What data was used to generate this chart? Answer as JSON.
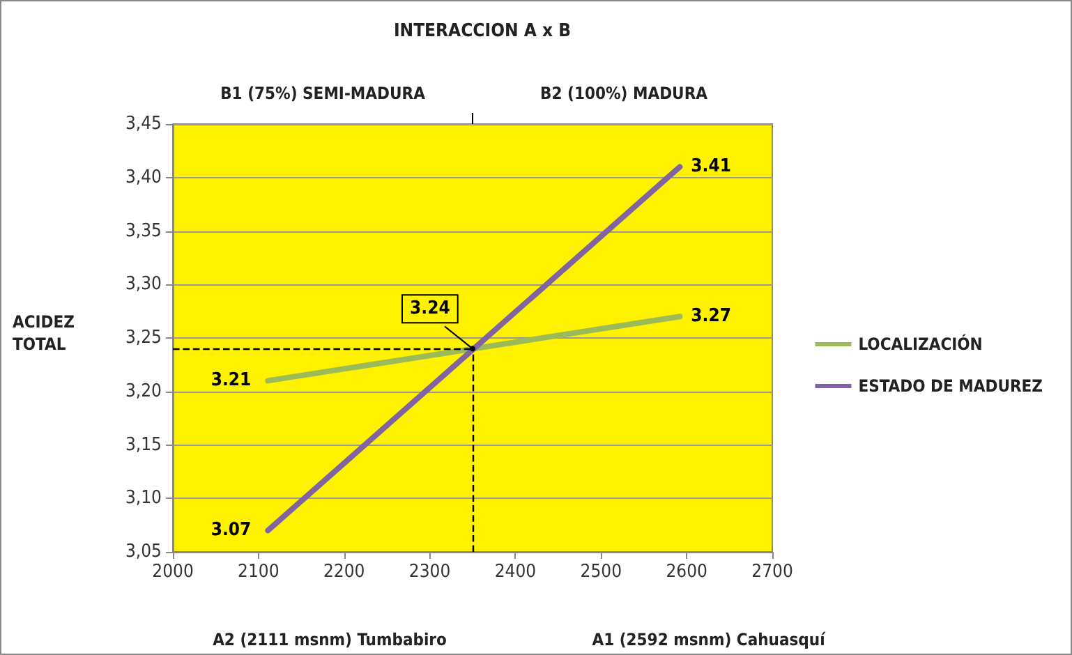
{
  "chart_data": {
    "type": "line",
    "title": "INTERACCION A x B",
    "ylabel": "ACIDEZ TOTAL",
    "series": [
      {
        "name": "LOCALIZACIÓN",
        "color": "#9bbb59",
        "values": [
          3.21,
          3.27
        ]
      },
      {
        "name": "ESTADO DE MADUREZ",
        "color": "#8064a2",
        "values": [
          3.07,
          3.41
        ]
      }
    ],
    "x": [
      2111,
      2592
    ],
    "xlim": [
      2000,
      2700
    ],
    "xticks": [
      2000,
      2100,
      2200,
      2300,
      2400,
      2500,
      2600,
      2700
    ],
    "ylim": [
      3.05,
      3.45
    ],
    "yticks": [
      {
        "value": 3.05,
        "label": "3,05"
      },
      {
        "value": 3.1,
        "label": "3,10"
      },
      {
        "value": 3.15,
        "label": "3,15"
      },
      {
        "value": 3.2,
        "label": "3,20"
      },
      {
        "value": 3.25,
        "label": "3,25"
      },
      {
        "value": 3.3,
        "label": "3,30"
      },
      {
        "value": 3.35,
        "label": "3,35"
      },
      {
        "value": 3.4,
        "label": "3,40"
      },
      {
        "value": 3.45,
        "label": "3,45"
      }
    ],
    "ref_lines": [
      {
        "axis": "x",
        "value": 2350,
        "line_style": "dashed",
        "color": "#000000"
      },
      {
        "axis": "y",
        "value": 3.24,
        "line_style": "dashed",
        "color": "#000000"
      }
    ],
    "annotations": [
      {
        "text": "3.24",
        "x": 2350,
        "y": 3.24
      },
      "B1 (75%) SEMI-MADURA",
      "B2 (100%) MADURA",
      "A2 (2111 msnm) Tumbabiro",
      "A1 (2592 msnm) Cahuasquí"
    ],
    "data_labels": true,
    "grid": "y",
    "legend": "right",
    "marker": "none",
    "line_style": "solid"
  }
}
